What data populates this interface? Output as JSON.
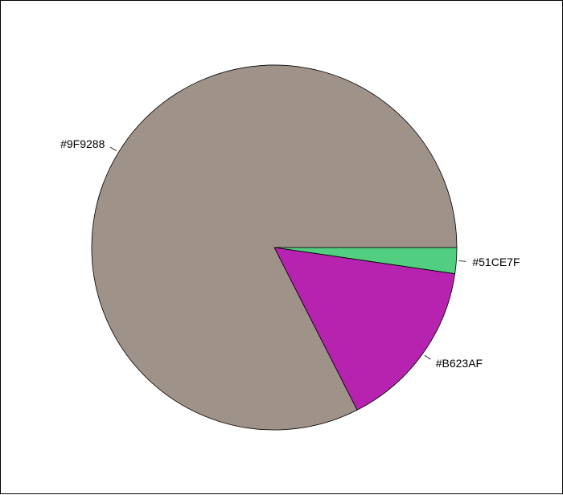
{
  "chart_data": {
    "type": "pie",
    "title": "",
    "start_angle_deg": 0,
    "direction": "clockwise",
    "slices": [
      {
        "label": "#51CE7F",
        "value": 2.3,
        "color": "#51CE7F"
      },
      {
        "label": "#B623AF",
        "value": 15.2,
        "color": "#B623AF"
      },
      {
        "label": "#9F9288",
        "value": 82.5,
        "color": "#9F9288"
      }
    ]
  }
}
